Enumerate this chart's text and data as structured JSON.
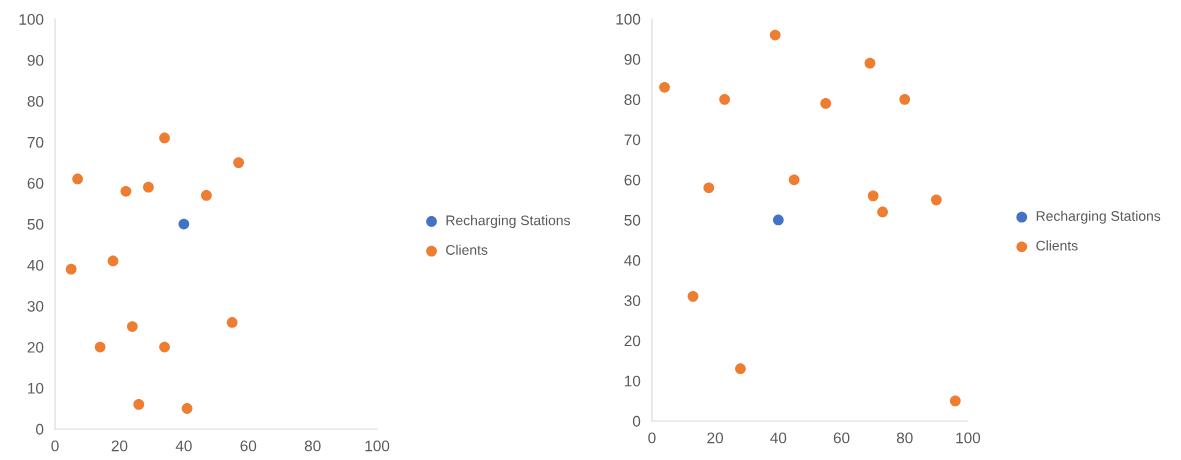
{
  "chart_data": [
    {
      "type": "scatter",
      "xlim": [
        0,
        100
      ],
      "ylim": [
        0,
        100
      ],
      "xticks": [
        0,
        20,
        40,
        60,
        80,
        100
      ],
      "yticks": [
        0,
        10,
        20,
        30,
        40,
        50,
        60,
        70,
        80,
        90,
        100
      ],
      "grid": false,
      "legend": "right",
      "marker": "circle",
      "series": [
        {
          "name": "Recharging Stations",
          "color": "#4472c4",
          "x": [
            40
          ],
          "values": [
            50
          ]
        },
        {
          "name": "Clients",
          "color": "#ed7d31",
          "x": [
            7,
            5,
            18,
            22,
            29,
            34,
            47,
            57,
            14,
            24,
            34,
            55,
            26,
            41
          ],
          "values": [
            61,
            39,
            41,
            58,
            59,
            71,
            57,
            65,
            20,
            25,
            20,
            26,
            6,
            5
          ]
        }
      ]
    },
    {
      "type": "scatter",
      "xlim": [
        0,
        100
      ],
      "ylim": [
        0,
        100
      ],
      "xticks": [
        0,
        20,
        40,
        60,
        80,
        100
      ],
      "yticks": [
        0,
        10,
        20,
        30,
        40,
        50,
        60,
        70,
        80,
        90,
        100
      ],
      "grid": false,
      "legend": "right",
      "marker": "circle",
      "series": [
        {
          "name": "Recharging Stations",
          "color": "#4472c4",
          "x": [
            40
          ],
          "values": [
            50
          ]
        },
        {
          "name": "Clients",
          "color": "#ed7d31",
          "x": [
            4,
            23,
            39,
            55,
            69,
            80,
            18,
            45,
            70,
            73,
            90,
            13,
            28,
            96
          ],
          "values": [
            83,
            80,
            96,
            79,
            89,
            80,
            58,
            60,
            56,
            52,
            55,
            31,
            13,
            5
          ]
        }
      ]
    }
  ]
}
